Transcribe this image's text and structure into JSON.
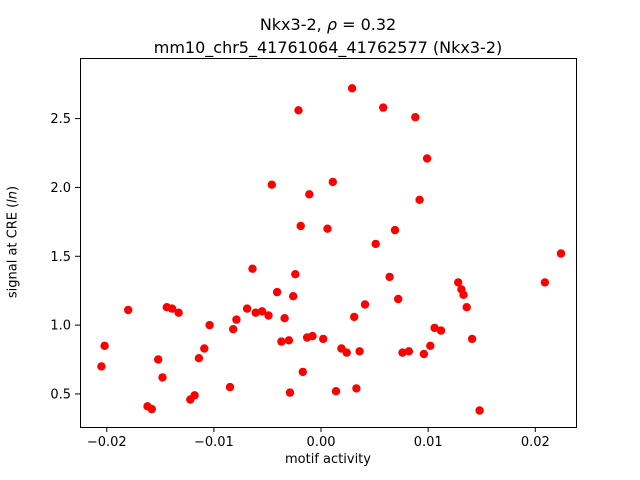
{
  "chart_data": {
    "type": "scatter",
    "title": {
      "line1_prefix": "Nkx3-2, ",
      "line1_rho": "ρ",
      "line1_suffix": " = 0.32",
      "line2": "mm10_chr5_41761064_41762577 (Nkx3-2)"
    },
    "xlabel": "motif activity",
    "ylabel_prefix": "signal at CRE (",
    "ylabel_italic": "ln",
    "ylabel_suffix": ")",
    "marker_color": "#ff0000",
    "background_color": "#ffffff",
    "axis_color": "#000000",
    "grid": false,
    "legend": "none",
    "xlim": [
      -0.0225,
      0.0238
    ],
    "ylim": [
      0.26,
      2.94
    ],
    "xticks": {
      "values": [
        -0.02,
        -0.01,
        0.0,
        0.01,
        0.02
      ],
      "labels": [
        "−0.02",
        "−0.01",
        "0.00",
        "0.01",
        "0.02"
      ]
    },
    "yticks": {
      "values": [
        0.5,
        1.0,
        1.5,
        2.0,
        2.5
      ],
      "labels": [
        "0.5",
        "1.0",
        "1.5",
        "2.0",
        "2.5"
      ]
    },
    "points": [
      [
        -0.0205,
        0.7
      ],
      [
        -0.0202,
        0.85
      ],
      [
        -0.018,
        1.11
      ],
      [
        -0.0162,
        0.41
      ],
      [
        -0.0158,
        0.39
      ],
      [
        -0.0152,
        0.75
      ],
      [
        -0.0148,
        0.62
      ],
      [
        -0.0144,
        1.13
      ],
      [
        -0.0139,
        1.12
      ],
      [
        -0.0133,
        1.09
      ],
      [
        -0.0122,
        0.46
      ],
      [
        -0.0118,
        0.49
      ],
      [
        -0.0114,
        0.76
      ],
      [
        -0.0109,
        0.83
      ],
      [
        -0.0104,
        1.0
      ],
      [
        -0.0085,
        0.55
      ],
      [
        -0.0082,
        0.97
      ],
      [
        -0.0079,
        1.04
      ],
      [
        -0.0069,
        1.12
      ],
      [
        -0.0064,
        1.41
      ],
      [
        -0.0061,
        1.09
      ],
      [
        -0.0055,
        1.1
      ],
      [
        -0.0049,
        1.07
      ],
      [
        -0.0046,
        2.02
      ],
      [
        -0.0041,
        1.24
      ],
      [
        -0.0037,
        0.88
      ],
      [
        -0.0034,
        1.05
      ],
      [
        -0.003,
        0.89
      ],
      [
        -0.0029,
        0.51
      ],
      [
        -0.0026,
        1.21
      ],
      [
        -0.0024,
        1.37
      ],
      [
        -0.0021,
        2.56
      ],
      [
        -0.0019,
        1.72
      ],
      [
        -0.0017,
        0.66
      ],
      [
        -0.0013,
        0.91
      ],
      [
        -0.0011,
        1.95
      ],
      [
        -0.0008,
        0.92
      ],
      [
        0.0002,
        0.9
      ],
      [
        0.0006,
        1.7
      ],
      [
        0.0011,
        2.04
      ],
      [
        0.0014,
        0.52
      ],
      [
        0.0019,
        0.83
      ],
      [
        0.0024,
        0.8
      ],
      [
        0.0029,
        2.72
      ],
      [
        0.0031,
        1.06
      ],
      [
        0.0033,
        0.54
      ],
      [
        0.0036,
        0.81
      ],
      [
        0.0041,
        1.15
      ],
      [
        0.0051,
        1.59
      ],
      [
        0.0058,
        2.58
      ],
      [
        0.0064,
        1.35
      ],
      [
        0.0069,
        1.69
      ],
      [
        0.0072,
        1.19
      ],
      [
        0.0076,
        0.8
      ],
      [
        0.0082,
        0.81
      ],
      [
        0.0088,
        2.51
      ],
      [
        0.0092,
        1.91
      ],
      [
        0.0096,
        0.79
      ],
      [
        0.0099,
        2.21
      ],
      [
        0.0102,
        0.85
      ],
      [
        0.0106,
        0.98
      ],
      [
        0.0112,
        0.96
      ],
      [
        0.0128,
        1.31
      ],
      [
        0.0131,
        1.26
      ],
      [
        0.0133,
        1.22
      ],
      [
        0.0136,
        1.13
      ],
      [
        0.0141,
        0.9
      ],
      [
        0.0148,
        0.38
      ],
      [
        0.0209,
        1.31
      ],
      [
        0.0224,
        1.52
      ]
    ]
  }
}
